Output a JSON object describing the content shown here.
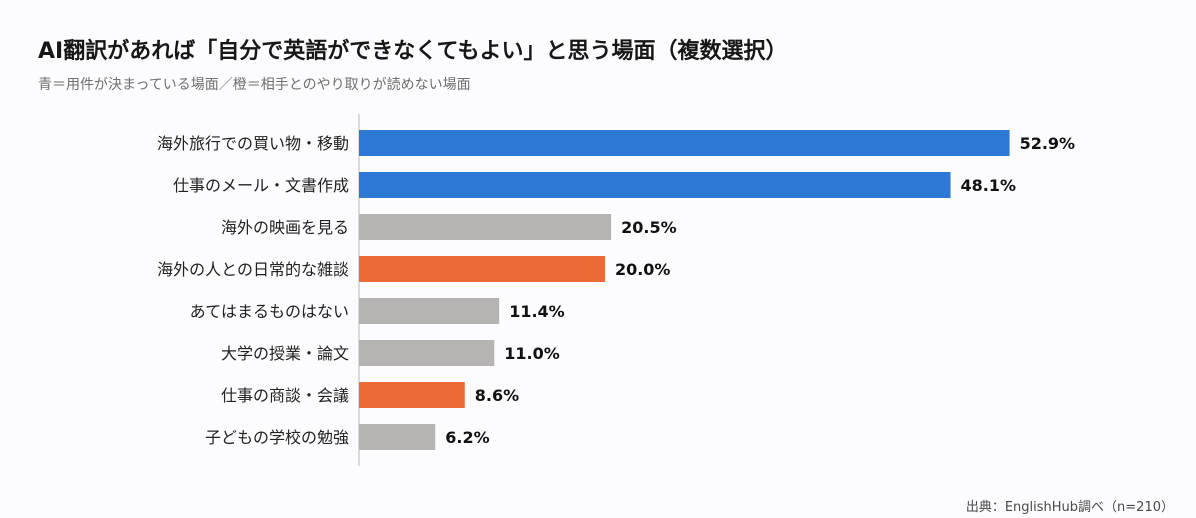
{
  "title": "AI翻訳があれば「自分で英語ができなくてもよい」と思う場面（複数選択）",
  "subtitle": "青＝用件が決まっている場面／橙＝相手とのやり取りが読めない場面",
  "source": "出典：EnglishHub調べ（n=210）",
  "colors": {
    "blue": "#2e78d6",
    "orange": "#eb6a35",
    "gray": "#b5b4b2",
    "axis": "#b8b8b8"
  },
  "chart_data": {
    "type": "bar",
    "orientation": "horizontal",
    "categories": [
      "海外旅行での買い物・移動",
      "仕事のメール・文書作成",
      "海外の映画を見る",
      "海外の人との日常的な雑談",
      "あてはまるものはない",
      "大学の授業・論文",
      "仕事の商談・会議",
      "子どもの学校の勉強"
    ],
    "values": [
      52.9,
      48.1,
      20.5,
      20.0,
      11.4,
      11.0,
      8.6,
      6.2
    ],
    "value_labels": [
      "52.9%",
      "48.1%",
      "20.5%",
      "20.0%",
      "11.4%",
      "11.0%",
      "8.6%",
      "6.2%"
    ],
    "bar_colors": [
      "blue",
      "blue",
      "gray",
      "orange",
      "gray",
      "gray",
      "orange",
      "gray"
    ],
    "xlim": [
      0,
      57
    ],
    "grid": false,
    "legend": "none"
  }
}
